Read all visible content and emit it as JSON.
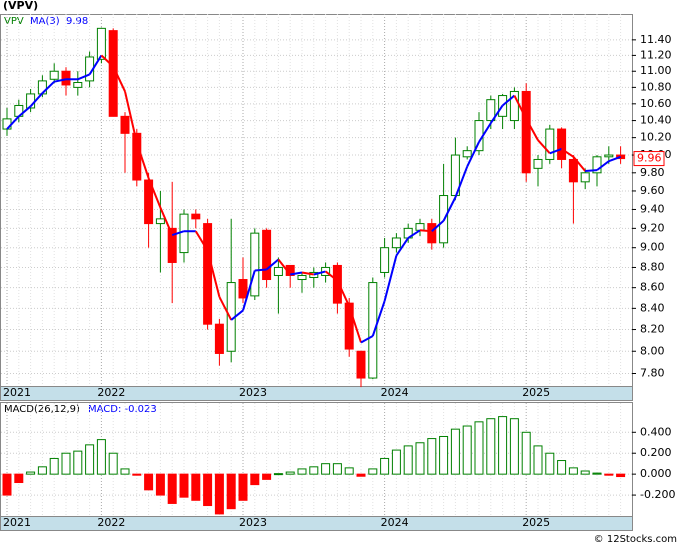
{
  "chart_data": [
    {
      "type": "candlestick",
      "title": "(VPV)",
      "symbol": "VPV",
      "categories": [
        "2021",
        null,
        null,
        null,
        null,
        null,
        null,
        null,
        "2022",
        null,
        null,
        null,
        null,
        null,
        null,
        null,
        null,
        null,
        null,
        null,
        "2023",
        null,
        null,
        null,
        null,
        null,
        null,
        null,
        null,
        null,
        null,
        null,
        "2024",
        null,
        null,
        null,
        null,
        null,
        null,
        null,
        null,
        null,
        null,
        null,
        "2025",
        null,
        null,
        null,
        null,
        null,
        null,
        null,
        null
      ],
      "open": [
        10.3,
        10.45,
        10.55,
        10.72,
        10.9,
        11.0,
        10.8,
        10.88,
        11.15,
        11.52,
        10.45,
        10.25,
        9.72,
        9.25,
        9.2,
        8.95,
        9.35,
        9.25,
        8.25,
        8.0,
        8.68,
        8.52,
        9.18,
        8.72,
        8.82,
        8.68,
        8.7,
        8.72,
        8.82,
        8.45,
        8.0,
        7.76,
        8.75,
        9.0,
        9.1,
        9.18,
        9.25,
        9.05,
        9.55,
        9.98,
        10.05,
        10.4,
        10.45,
        10.4,
        10.75,
        9.85,
        9.95,
        10.3,
        9.95,
        9.7,
        9.8,
        9.98,
        10.0
      ],
      "high": [
        10.55,
        10.65,
        10.78,
        10.95,
        11.1,
        11.05,
        11.0,
        11.25,
        11.56,
        11.55,
        10.5,
        10.3,
        9.8,
        9.6,
        9.7,
        9.4,
        9.4,
        9.3,
        8.3,
        9.3,
        8.9,
        9.2,
        9.2,
        8.9,
        8.8,
        8.75,
        8.8,
        8.85,
        8.85,
        8.5,
        8.0,
        8.7,
        9.1,
        9.15,
        9.25,
        9.3,
        9.3,
        9.9,
        10.2,
        10.1,
        10.5,
        10.7,
        10.72,
        10.8,
        10.85,
        10.0,
        10.35,
        10.32,
        10.0,
        9.85,
        10.0,
        10.1,
        10.1
      ],
      "low": [
        10.22,
        10.38,
        10.5,
        10.68,
        10.85,
        10.7,
        10.7,
        10.8,
        11.1,
        10.45,
        9.8,
        9.65,
        9.0,
        8.75,
        8.45,
        8.85,
        9.2,
        8.2,
        7.87,
        7.9,
        8.45,
        8.48,
        8.6,
        8.35,
        8.6,
        8.55,
        8.6,
        8.65,
        8.35,
        7.95,
        7.68,
        7.75,
        8.7,
        8.95,
        9.05,
        9.12,
        8.98,
        9.0,
        9.5,
        9.95,
        10.0,
        10.3,
        10.3,
        10.3,
        9.7,
        9.65,
        9.9,
        9.85,
        9.25,
        9.62,
        9.65,
        9.9,
        9.9
      ],
      "close": [
        10.42,
        10.58,
        10.72,
        10.88,
        11.0,
        10.83,
        10.86,
        11.18,
        11.55,
        10.45,
        10.25,
        9.72,
        9.25,
        9.3,
        8.85,
        9.35,
        9.3,
        8.25,
        7.98,
        8.65,
        8.5,
        9.15,
        8.68,
        8.8,
        8.72,
        8.72,
        8.75,
        8.8,
        8.45,
        8.02,
        7.76,
        8.65,
        9.0,
        9.1,
        9.2,
        9.25,
        9.05,
        9.55,
        10.0,
        10.05,
        10.4,
        10.65,
        10.7,
        10.75,
        9.8,
        9.95,
        10.3,
        9.95,
        9.7,
        9.8,
        9.98,
        10.0,
        9.96
      ],
      "last_label": "9.96",
      "up_color": "#008000",
      "down_color": "#ff0000",
      "series": [
        {
          "name": "MA(3)",
          "last_label": "9.98",
          "color": "#0000ff",
          "down_color": "#ff0000",
          "values": [
            10.3,
            10.45,
            10.57,
            10.73,
            10.87,
            10.9,
            10.9,
            10.96,
            11.2,
            11.06,
            10.75,
            10.14,
            9.74,
            9.42,
            9.13,
            9.17,
            9.17,
            8.97,
            8.51,
            8.29,
            8.38,
            8.77,
            8.78,
            8.88,
            8.73,
            8.75,
            8.73,
            8.76,
            8.67,
            8.42,
            8.08,
            8.14,
            8.47,
            8.92,
            9.1,
            9.18,
            9.17,
            9.28,
            9.53,
            9.87,
            10.15,
            10.37,
            10.58,
            10.7,
            10.42,
            10.17,
            10.02,
            10.07,
            9.98,
            9.82,
            9.83,
            9.93,
            9.98
          ]
        }
      ],
      "log_scale": true,
      "grid": true,
      "ylim": [
        7.69,
        11.74
      ],
      "yticks": [
        {
          "value": 7.8,
          "label": "7.80"
        },
        {
          "value": 8.0,
          "label": "8.00"
        },
        {
          "value": 8.2,
          "label": "8.20"
        },
        {
          "value": 8.4,
          "label": "8.40"
        },
        {
          "value": 8.6,
          "label": "8.60"
        },
        {
          "value": 8.8,
          "label": "8.80"
        },
        {
          "value": 9.0,
          "label": "9.00"
        },
        {
          "value": 9.2,
          "label": "9.20"
        },
        {
          "value": 9.4,
          "label": "9.40"
        },
        {
          "value": 9.6,
          "label": "9.60"
        },
        {
          "value": 9.8,
          "label": "9.80"
        },
        {
          "value": 10.0,
          "label": "10.00"
        },
        {
          "value": 10.2,
          "label": "10.20"
        },
        {
          "value": 10.4,
          "label": "10.40"
        },
        {
          "value": 10.6,
          "label": "10.60"
        },
        {
          "value": 10.8,
          "label": "10.80"
        },
        {
          "value": 11.0,
          "label": "11.00"
        },
        {
          "value": 11.2,
          "label": "11.20"
        },
        {
          "value": 11.4,
          "label": "11.40"
        }
      ]
    },
    {
      "type": "bar",
      "title": "MACD(26,12,9)",
      "legend": "MACD: -0.023",
      "values": [
        -0.2,
        -0.08,
        0.02,
        0.07,
        0.15,
        0.2,
        0.22,
        0.28,
        0.33,
        0.2,
        0.05,
        -0.01,
        -0.15,
        -0.2,
        -0.28,
        -0.22,
        -0.25,
        -0.3,
        -0.38,
        -0.33,
        -0.25,
        -0.1,
        -0.05,
        0.005,
        0.02,
        0.05,
        0.07,
        0.1,
        0.1,
        0.06,
        -0.02,
        0.05,
        0.15,
        0.23,
        0.27,
        0.3,
        0.34,
        0.36,
        0.43,
        0.46,
        0.5,
        0.53,
        0.55,
        0.53,
        0.4,
        0.27,
        0.2,
        0.13,
        0.06,
        0.03,
        0.01,
        -0.01,
        -0.023
      ],
      "up_color": "#008000",
      "down_color": "#ff0000",
      "grid": true,
      "ylim": [
        -0.4,
        0.68
      ],
      "yticks": [
        {
          "value": -0.2,
          "label": "-0.200"
        },
        {
          "value": 0,
          "label": "0.000"
        },
        {
          "value": 0.2,
          "label": "0.200"
        },
        {
          "value": 0.4,
          "label": "0.400"
        }
      ]
    }
  ],
  "credit": "© 12Stocks.com"
}
